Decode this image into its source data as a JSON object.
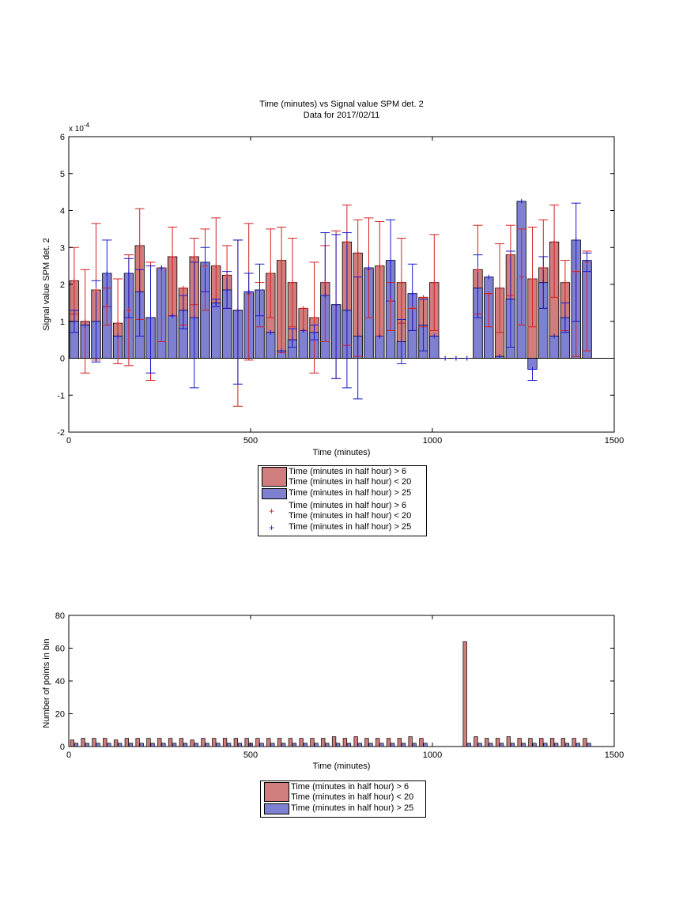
{
  "colors": {
    "red_fill": "#cf7d7d",
    "blue_fill": "#8080d2",
    "red_line": "#d42020",
    "blue_line": "#1818c8",
    "edge": "#000000"
  },
  "chart_data": [
    {
      "type": "bar",
      "title": "Time (minutes) vs Signal value SPM det. 2",
      "subtitle": "Data for 2017/02/11",
      "xlabel": "Time (minutes)",
      "ylabel": "Signal value SPM det. 2",
      "exponent_label": "x 10",
      "exponent_power": "-4",
      "xlim": [
        0,
        1500
      ],
      "ylim": [
        -2,
        6
      ],
      "xticks": [
        "0",
        "500",
        "1000",
        "1500"
      ],
      "yticks": [
        "-2",
        "-1",
        "0",
        "1",
        "2",
        "3",
        "4",
        "5",
        "6"
      ],
      "grid": false,
      "legend_position": "below",
      "series": [
        {
          "name": "Time (minutes in half hour) > 6\nTime (minutes in half hour) < 20",
          "kind": "bar",
          "x": [
            15,
            45,
            75,
            105,
            135,
            165,
            195,
            225,
            255,
            285,
            315,
            345,
            375,
            405,
            435,
            465,
            495,
            525,
            555,
            585,
            615,
            645,
            675,
            705,
            735,
            765,
            795,
            825,
            855,
            885,
            915,
            945,
            975,
            1005,
            1035,
            1065,
            1095,
            1125,
            1155,
            1185,
            1215,
            1245,
            1275,
            1305,
            1335,
            1365,
            1395,
            1425
          ],
          "values": [
            2.1,
            1.0,
            1.85,
            1.4,
            0.95,
            1.3,
            3.05,
            1.1,
            2.45,
            2.75,
            1.9,
            2.75,
            2.5,
            2.5,
            2.25,
            1.3,
            1.75,
            1.85,
            2.3,
            2.65,
            2.05,
            1.35,
            1.1,
            2.05,
            1.45,
            3.15,
            2.85,
            2.4,
            2.5,
            1.55,
            2.05,
            1.35,
            1.65,
            2.05,
            0,
            0,
            0,
            2.4,
            1.75,
            1.9,
            2.8,
            2.2,
            2.15,
            2.45,
            3.15,
            2.05,
            2.35,
            2.6
          ],
          "err_low": [
            0.9,
            1.4,
            1.9,
            0.5,
            1.1,
            1.5,
            2.0,
            1.7,
            2.0,
            1.6,
            1.0,
            1.3,
            1.2,
            1.1,
            0.9,
            2.6,
            1.8,
            1.0,
            1.2,
            2.5,
            1.2,
            0.6,
            1.5,
            1.6,
            2.0,
            2.8,
            2.8,
            1.3,
            1.9,
            0.8,
            1.1,
            0.6,
            0.8,
            1.3,
            0,
            0,
            0,
            1.2,
            0.9,
            1.2,
            1.1,
            1.3,
            1.3,
            1.1,
            1.5,
            1.3,
            2.3,
            2.4
          ],
          "err_high": [
            0.9,
            1.4,
            1.8,
            0.5,
            1.2,
            1.5,
            1.0,
            1.5,
            0.0,
            0.8,
            0.0,
            0.5,
            1.0,
            1.3,
            0.8,
            1.9,
            1.9,
            0.2,
            1.2,
            0.9,
            1.2,
            0.0,
            1.5,
            1.0,
            2.0,
            1.0,
            0.9,
            1.4,
            1.2,
            0.5,
            1.2,
            0.0,
            0.0,
            1.3,
            0,
            0,
            0,
            1.2,
            0.0,
            1.2,
            0.8,
            1.3,
            1.4,
            1.3,
            1.0,
            0.6,
            0.0,
            0.3
          ]
        },
        {
          "name": "Time (minutes in half hour) > 25",
          "kind": "bar",
          "x": [
            15,
            45,
            75,
            105,
            135,
            165,
            195,
            225,
            255,
            285,
            315,
            345,
            375,
            405,
            435,
            465,
            495,
            525,
            555,
            585,
            615,
            645,
            675,
            705,
            735,
            765,
            795,
            825,
            855,
            885,
            915,
            945,
            975,
            1005,
            1035,
            1065,
            1095,
            1125,
            1155,
            1185,
            1215,
            1245,
            1275,
            1305,
            1335,
            1365,
            1395,
            1425
          ],
          "values": [
            1.0,
            0.9,
            1.0,
            2.3,
            0.6,
            2.3,
            1.8,
            1.1,
            2.45,
            1.15,
            1.3,
            1.1,
            2.6,
            1.5,
            1.85,
            1.3,
            1.8,
            1.85,
            0.7,
            0.2,
            0.5,
            0.75,
            0.7,
            1.7,
            1.45,
            1.3,
            0.6,
            2.45,
            0.6,
            2.65,
            0.45,
            1.75,
            0.9,
            0.6,
            0,
            0,
            0,
            1.9,
            2.2,
            0.05,
            1.6,
            4.25,
            -0.3,
            2.05,
            0.6,
            1.1,
            3.2,
            2.65
          ],
          "err_low": [
            0.3,
            0.0,
            1.1,
            0.9,
            0.0,
            1.2,
            1.2,
            1.5,
            0.0,
            0.0,
            0.5,
            1.9,
            0.8,
            0.1,
            0.5,
            2.0,
            0.0,
            0.7,
            0.0,
            0.0,
            0.2,
            0.0,
            0.2,
            0.0,
            2.0,
            2.1,
            1.7,
            0.0,
            0.0,
            1.1,
            0.6,
            1.0,
            0.7,
            0.0,
            0,
            0,
            0,
            0.8,
            0.0,
            0.0,
            1.3,
            0.0,
            0.3,
            0.7,
            0.0,
            0.4,
            2.2,
            0.3
          ],
          "err_high": [
            0.3,
            0.0,
            1.1,
            0.9,
            0.0,
            0.4,
            0.6,
            1.4,
            0.0,
            0.0,
            0.4,
            1.5,
            0.4,
            0.1,
            0.5,
            1.9,
            0.5,
            0.7,
            0.0,
            0.0,
            0.3,
            0.0,
            0.2,
            1.7,
            1.9,
            2.1,
            1.6,
            0.0,
            0.0,
            1.1,
            0.6,
            0.8,
            0.7,
            0.0,
            0,
            0,
            0,
            0.9,
            0.0,
            0.0,
            1.3,
            0.0,
            0.0,
            0.7,
            0.0,
            0.4,
            1.0,
            0.2
          ]
        }
      ],
      "markers": {
        "red": {
          "name": "Time (minutes in half hour) > 6\nTime (minutes in half hour) < 20",
          "symbol": "+",
          "x": [
            15,
            45,
            75,
            105,
            135,
            165,
            195,
            225,
            255,
            285,
            315,
            345,
            375,
            405,
            435,
            465,
            495,
            525,
            555,
            585,
            615,
            645,
            675,
            705,
            735,
            765,
            795,
            825,
            855,
            885,
            915,
            945,
            975,
            1005,
            1035,
            1065,
            1095,
            1125,
            1155,
            1185,
            1215,
            1245,
            1275,
            1305,
            1335,
            1365,
            1395,
            1425
          ],
          "values": [
            2.1,
            1.0,
            1.85,
            1.4,
            0.95,
            1.3,
            3.05,
            1.1,
            2.45,
            2.75,
            1.9,
            2.75,
            2.5,
            2.5,
            2.25,
            1.3,
            1.75,
            1.85,
            2.3,
            2.65,
            2.05,
            1.35,
            1.1,
            2.05,
            1.45,
            3.15,
            2.85,
            2.4,
            2.5,
            1.55,
            2.05,
            1.35,
            1.65,
            2.05,
            0,
            0,
            0,
            2.4,
            1.75,
            1.9,
            2.8,
            2.2,
            2.15,
            2.45,
            3.15,
            2.05,
            2.35,
            2.6
          ]
        },
        "blue": {
          "name": "Time (minutes in half hour) > 25",
          "symbol": "+",
          "x": [
            15,
            45,
            75,
            105,
            135,
            165,
            195,
            225,
            255,
            285,
            315,
            345,
            375,
            405,
            435,
            465,
            495,
            525,
            555,
            585,
            615,
            645,
            675,
            705,
            735,
            765,
            795,
            825,
            855,
            885,
            915,
            945,
            975,
            1005,
            1035,
            1065,
            1095,
            1125,
            1155,
            1185,
            1215,
            1245,
            1275,
            1305,
            1335,
            1365,
            1395,
            1425
          ],
          "values": [
            1.0,
            0.9,
            1.0,
            2.3,
            0.6,
            2.3,
            1.8,
            1.1,
            2.45,
            1.15,
            1.3,
            1.1,
            2.6,
            1.5,
            1.85,
            1.3,
            1.8,
            1.85,
            0.7,
            0.2,
            0.5,
            0.75,
            0.7,
            1.7,
            1.45,
            1.3,
            0.6,
            2.45,
            0.6,
            2.65,
            0.45,
            1.75,
            0.9,
            0.6,
            0,
            0,
            0,
            1.9,
            2.2,
            0.05,
            1.6,
            4.25,
            -0.3,
            2.05,
            0.6,
            1.1,
            3.2,
            2.65
          ]
        }
      }
    },
    {
      "type": "bar",
      "title": "",
      "xlabel": "Time (minutes)",
      "ylabel": "Number of points in bin",
      "xlim": [
        0,
        1500
      ],
      "ylim": [
        0,
        80
      ],
      "xticks": [
        "0",
        "500",
        "1000",
        "1500"
      ],
      "yticks": [
        "0",
        "20",
        "40",
        "60",
        "80"
      ],
      "grid": false,
      "legend_position": "below",
      "x": [
        15,
        45,
        75,
        105,
        135,
        165,
        195,
        225,
        255,
        285,
        315,
        345,
        375,
        405,
        435,
        465,
        495,
        525,
        555,
        585,
        615,
        645,
        675,
        705,
        735,
        765,
        795,
        825,
        855,
        885,
        915,
        945,
        975,
        1005,
        1035,
        1065,
        1095,
        1125,
        1155,
        1185,
        1215,
        1245,
        1275,
        1305,
        1335,
        1365,
        1395,
        1425
      ],
      "series": [
        {
          "name": "Time (minutes in half hour) > 6\nTime (minutes in half hour) < 20",
          "values": [
            4,
            5,
            5,
            5,
            4,
            5,
            5,
            5,
            5,
            5,
            5,
            4,
            5,
            5,
            5,
            5,
            5,
            5,
            5,
            5,
            5,
            5,
            5,
            5,
            6,
            5,
            6,
            5,
            5,
            5,
            5,
            6,
            5,
            0,
            0,
            0,
            64,
            6,
            5,
            5,
            6,
            5,
            5,
            5,
            5,
            5,
            5,
            5
          ]
        },
        {
          "name": "Time (minutes in half hour) > 25",
          "values": [
            2,
            2,
            2,
            2,
            2,
            2,
            2,
            2,
            2,
            2,
            2,
            2,
            2,
            2,
            2,
            2,
            2,
            2,
            2,
            2,
            2,
            2,
            2,
            2,
            2,
            2,
            2,
            2,
            2,
            2,
            2,
            2,
            2,
            0,
            0,
            0,
            2,
            2,
            2,
            2,
            2,
            2,
            2,
            2,
            2,
            2,
            2,
            2
          ]
        }
      ]
    }
  ],
  "legend_top": [
    {
      "label": "Time (minutes in half hour) > 6\nTime (minutes in half hour) < 20",
      "style": "red-bar"
    },
    {
      "label": "Time (minutes in half hour) > 25",
      "style": "blue-bar"
    },
    {
      "label": "Time (minutes in half hour) > 6\nTime (minutes in half hour) < 20",
      "style": "red-plus"
    },
    {
      "label": "Time (minutes in half hour) > 25",
      "style": "blue-plus"
    }
  ],
  "legend_bottom": [
    {
      "label": "Time (minutes in half hour) > 6\nTime (minutes in half hour) < 20",
      "style": "red-bar"
    },
    {
      "label": "Time (minutes in half hour) > 25",
      "style": "blue-bar"
    }
  ]
}
